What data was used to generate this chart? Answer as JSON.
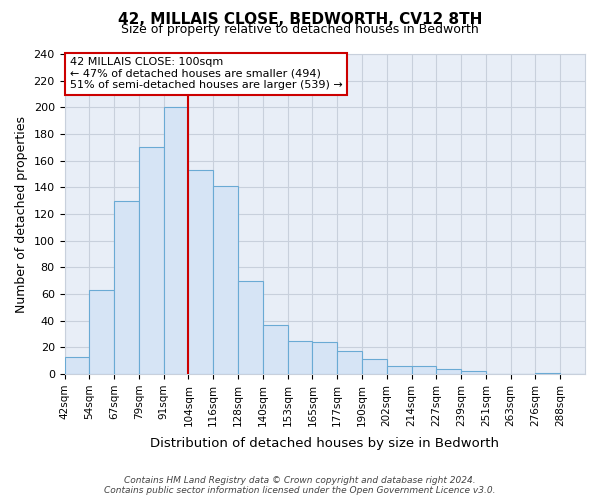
{
  "title": "42, MILLAIS CLOSE, BEDWORTH, CV12 8TH",
  "subtitle": "Size of property relative to detached houses in Bedworth",
  "xlabel": "Distribution of detached houses by size in Bedworth",
  "ylabel": "Number of detached properties",
  "bar_labels": [
    "42sqm",
    "54sqm",
    "67sqm",
    "79sqm",
    "91sqm",
    "104sqm",
    "116sqm",
    "128sqm",
    "140sqm",
    "153sqm",
    "165sqm",
    "177sqm",
    "190sqm",
    "202sqm",
    "214sqm",
    "227sqm",
    "239sqm",
    "251sqm",
    "263sqm",
    "276sqm",
    "288sqm"
  ],
  "bar_values": [
    13,
    63,
    130,
    170,
    200,
    153,
    141,
    70,
    37,
    25,
    24,
    17,
    11,
    6,
    6,
    4,
    2,
    0,
    0,
    1,
    0
  ],
  "bar_fill_color": "#d6e4f5",
  "bar_edge_color": "#6aaad4",
  "plot_bg_color": "#e8eef7",
  "vline_color": "#cc0000",
  "vline_x": 4.5,
  "annotation_title": "42 MILLAIS CLOSE: 100sqm",
  "annotation_line1": "← 47% of detached houses are smaller (494)",
  "annotation_line2": "51% of semi-detached houses are larger (539) →",
  "annotation_box_color": "#ffffff",
  "annotation_box_edge": "#cc0000",
  "ylim": [
    0,
    240
  ],
  "yticks": [
    0,
    20,
    40,
    60,
    80,
    100,
    120,
    140,
    160,
    180,
    200,
    220,
    240
  ],
  "grid_color": "#c8d0dc",
  "footer_line1": "Contains HM Land Registry data © Crown copyright and database right 2024.",
  "footer_line2": "Contains public sector information licensed under the Open Government Licence v3.0.",
  "fig_bg_color": "#ffffff"
}
